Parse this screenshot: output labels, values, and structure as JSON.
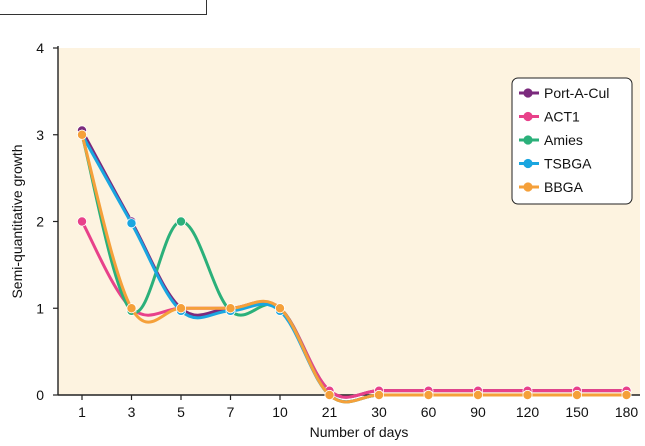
{
  "chart_data": {
    "type": "line",
    "xlabel": "Number of days",
    "ylabel": "Semi-quantitative growth",
    "categories": [
      "1",
      "3",
      "5",
      "7",
      "10",
      "21",
      "30",
      "60",
      "90",
      "120",
      "150",
      "180"
    ],
    "ylim": [
      0,
      4
    ],
    "yticks": [
      "0",
      "1",
      "2",
      "3",
      "4"
    ],
    "grid": false,
    "legend_position": "top-right",
    "background_color": "#fdf3e0",
    "series": [
      {
        "name": "Port-A-Cul",
        "color": "#7b2a7d",
        "values": [
          3.05,
          2.0,
          1.0,
          1.0,
          1.0,
          0.05,
          0.05,
          0.05,
          0.05,
          0.05,
          0.05,
          0.05
        ]
      },
      {
        "name": "ACT1",
        "color": "#e8418a",
        "values": [
          2.0,
          1.0,
          1.0,
          1.0,
          1.0,
          0.05,
          0.05,
          0.05,
          0.05,
          0.05,
          0.05,
          0.05
        ]
      },
      {
        "name": "Amies",
        "color": "#2bb07a",
        "values": [
          3.0,
          0.97,
          2.0,
          0.97,
          1.0,
          0.0,
          0.0,
          0.0,
          0.0,
          0.0,
          0.0,
          0.0
        ]
      },
      {
        "name": "TSBGA",
        "color": "#1aa6e0",
        "values": [
          3.0,
          1.98,
          0.97,
          0.97,
          0.97,
          0.0,
          0.0,
          0.0,
          0.0,
          0.0,
          0.0,
          0.0
        ]
      },
      {
        "name": "BBGA",
        "color": "#f5a03a",
        "values": [
          3.0,
          1.0,
          1.0,
          1.0,
          1.0,
          0.0,
          0.0,
          0.0,
          0.0,
          0.0,
          0.0,
          0.0
        ]
      }
    ]
  }
}
